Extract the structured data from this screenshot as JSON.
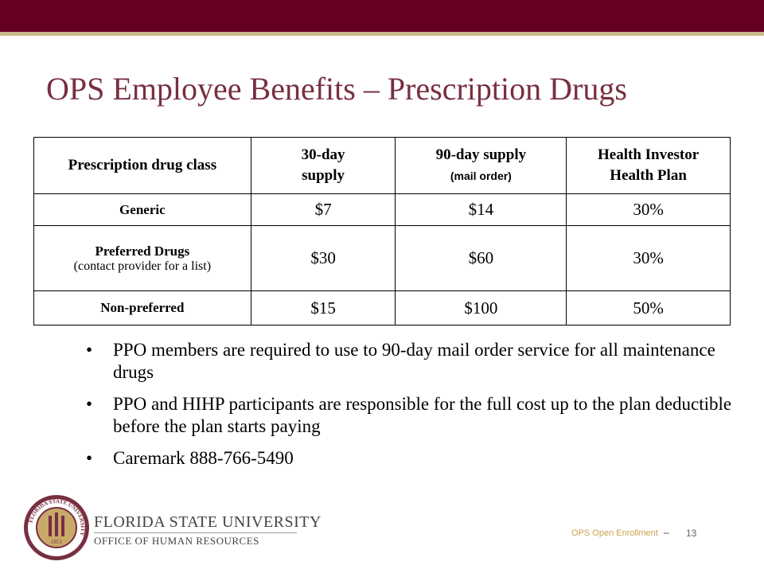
{
  "header": {
    "title": "OPS Employee Benefits – Prescription Drugs"
  },
  "table": {
    "header": [
      [
        "Prescription drug class"
      ],
      [
        "30-day",
        "supply"
      ],
      [
        "90-day supply",
        "(mail order)"
      ],
      [
        "Health Investor",
        "Health Plan"
      ]
    ],
    "rows": [
      {
        "label": "Generic",
        "values": [
          "$7",
          "$14",
          "30%"
        ]
      },
      {
        "label": "Preferred Drugs",
        "note": "(contact provider for a list)",
        "values": [
          "$30",
          "$60",
          "30%"
        ]
      },
      {
        "label": "Non-preferred",
        "values": [
          "$15",
          "$100",
          "50%"
        ]
      }
    ]
  },
  "bullets": [
    "PPO members are required to use to 90-day mail order service for all maintenance drugs",
    "PPO and HIHP participants are responsible for the full cost up to the plan deductible before the plan starts paying",
    "Caremark 888-766-5490"
  ],
  "footer": {
    "seal_text": "FLORIDA STATE UNIVERSITY",
    "seal_year": "1851",
    "university": "FLORIDA STATE UNIVERSITY",
    "office": "OFFICE OF HUMAN RESOURCES",
    "event": "OPS Open Enrollment",
    "separator": "–",
    "page": "13"
  }
}
